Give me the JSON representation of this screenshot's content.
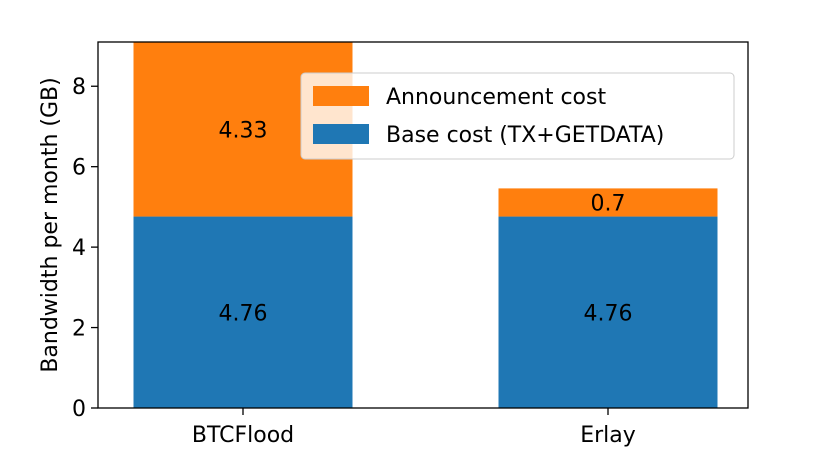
{
  "chart_data": {
    "type": "bar",
    "stacked": true,
    "categories": [
      "BTCFlood",
      "Erlay"
    ],
    "series": [
      {
        "name": "Base cost (TX+GETDATA)",
        "values": [
          4.76,
          4.76
        ],
        "labels": [
          "4.76",
          "4.76"
        ],
        "color": "#1f77b4"
      },
      {
        "name": "Announcement cost",
        "values": [
          4.33,
          0.7
        ],
        "labels": [
          "4.33",
          "0.7"
        ],
        "color": "#ff7f0e"
      }
    ],
    "title": "",
    "xlabel": "",
    "ylabel": "Bandwidth per month (GB)",
    "ylim": [
      0,
      9.1
    ],
    "yticks": [
      0,
      2,
      4,
      6,
      8
    ],
    "legend": {
      "placement": "top-right",
      "entries": [
        "Announcement cost",
        "Base cost (TX+GETDATA)"
      ]
    },
    "grid": false
  }
}
